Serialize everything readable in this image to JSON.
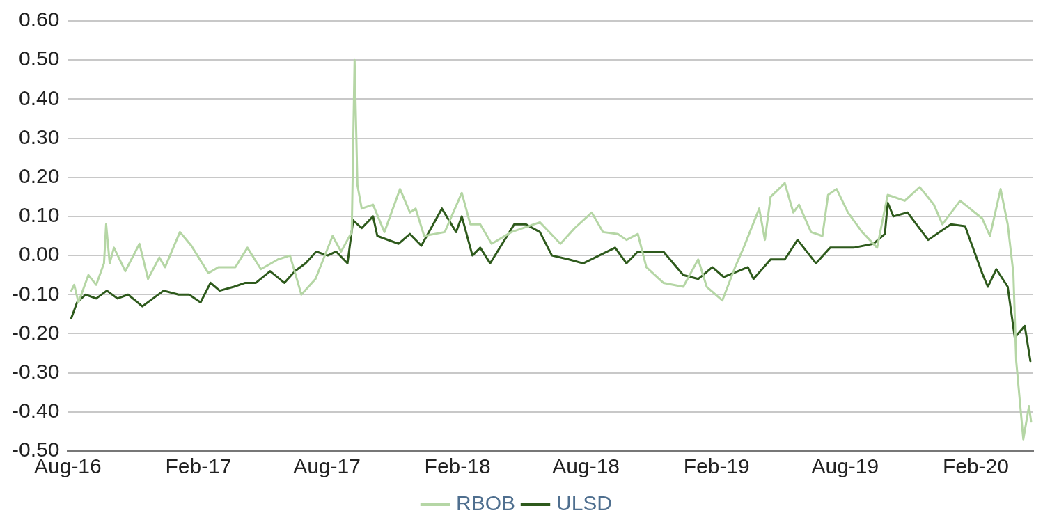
{
  "chart_data": {
    "type": "line",
    "legend": "bottom",
    "grid": "y",
    "marker": "none",
    "line_style": "solid",
    "xlim": [
      "2016-08-01",
      "2020-04-22"
    ],
    "xticks": [
      {
        "value": "2016-08-01",
        "label": "Aug-16"
      },
      {
        "value": "2017-02-01",
        "label": "Feb-17"
      },
      {
        "value": "2017-08-01",
        "label": "Aug-17"
      },
      {
        "value": "2018-02-01",
        "label": "Feb-18"
      },
      {
        "value": "2018-08-01",
        "label": "Aug-18"
      },
      {
        "value": "2019-02-01",
        "label": "Feb-19"
      },
      {
        "value": "2019-08-01",
        "label": "Aug-19"
      },
      {
        "value": "2020-02-01",
        "label": "Feb-20"
      }
    ],
    "ylim": [
      -0.5,
      0.6
    ],
    "yticks": [
      {
        "value": -0.5,
        "label": "-0.50"
      },
      {
        "value": -0.4,
        "label": "-0.40"
      },
      {
        "value": -0.3,
        "label": "-0.30"
      },
      {
        "value": -0.2,
        "label": "-0.20"
      },
      {
        "value": -0.1,
        "label": "-0.10"
      },
      {
        "value": 0,
        "label": "0.00"
      },
      {
        "value": 0.1,
        "label": "0.10"
      },
      {
        "value": 0.2,
        "label": "0.20"
      },
      {
        "value": 0.3,
        "label": "0.30"
      },
      {
        "value": 0.4,
        "label": "0.40"
      },
      {
        "value": 0.5,
        "label": "0.50"
      },
      {
        "value": 0.6,
        "label": "0.60"
      }
    ],
    "series": [
      {
        "name": "RBOB",
        "color": "#b5d6a5",
        "x": [
          "2016-08-06",
          "2016-08-10",
          "2016-08-16",
          "2016-08-30",
          "2016-09-10",
          "2016-09-21",
          "2016-09-24",
          "2016-09-29",
          "2016-10-05",
          "2016-10-21",
          "2016-11-10",
          "2016-11-22",
          "2016-12-08",
          "2016-12-16",
          "2017-01-06",
          "2017-01-22",
          "2017-02-15",
          "2017-03-01",
          "2017-03-25",
          "2017-04-11",
          "2017-04-30",
          "2017-05-24",
          "2017-06-10",
          "2017-06-26",
          "2017-07-16",
          "2017-08-09",
          "2017-08-21",
          "2017-09-05",
          "2017-09-09",
          "2017-09-13",
          "2017-09-19",
          "2017-10-05",
          "2017-10-21",
          "2017-11-12",
          "2017-11-26",
          "2017-12-04",
          "2017-12-16",
          "2018-01-14",
          "2018-02-07",
          "2018-02-19",
          "2018-03-05",
          "2018-03-21",
          "2018-04-18",
          "2018-05-28",
          "2018-06-26",
          "2018-07-16",
          "2018-08-09",
          "2018-08-25",
          "2018-09-15",
          "2018-09-27",
          "2018-10-13",
          "2018-10-25",
          "2018-11-18",
          "2018-12-16",
          "2019-01-06",
          "2019-01-18",
          "2019-02-09",
          "2019-02-27",
          "2019-03-11",
          "2019-04-02",
          "2019-04-10",
          "2019-04-18",
          "2019-05-08",
          "2019-05-20",
          "2019-05-28",
          "2019-06-14",
          "2019-06-30",
          "2019-07-08",
          "2019-07-20",
          "2019-08-05",
          "2019-08-25",
          "2019-09-15",
          "2019-09-30",
          "2019-10-24",
          "2019-11-14",
          "2019-12-04",
          "2019-12-16",
          "2020-01-10",
          "2020-02-10",
          "2020-02-21",
          "2020-03-07",
          "2020-03-17",
          "2020-03-25",
          "2020-03-29",
          "2020-04-08",
          "2020-04-16",
          "2020-04-19"
        ],
        "values": [
          -0.09,
          -0.075,
          -0.12,
          -0.05,
          -0.075,
          -0.02,
          0.08,
          -0.02,
          0.02,
          -0.04,
          0.03,
          -0.06,
          -0.005,
          -0.03,
          0.06,
          0.025,
          -0.045,
          -0.03,
          -0.03,
          0.02,
          -0.035,
          -0.01,
          0,
          -0.1,
          -0.06,
          0.05,
          0.01,
          0.06,
          0.5,
          0.18,
          0.12,
          0.13,
          0.06,
          0.17,
          0.11,
          0.12,
          0.05,
          0.06,
          0.16,
          0.08,
          0.08,
          0.03,
          0.06,
          0.085,
          0.03,
          0.07,
          0.11,
          0.06,
          0.055,
          0.04,
          0.055,
          -0.03,
          -0.07,
          -0.08,
          -0.01,
          -0.08,
          -0.115,
          -0.03,
          0.02,
          0.12,
          0.04,
          0.15,
          0.185,
          0.11,
          0.13,
          0.06,
          0.05,
          0.155,
          0.17,
          0.11,
          0.06,
          0.02,
          0.155,
          0.14,
          0.175,
          0.13,
          0.08,
          0.14,
          0.095,
          0.05,
          0.17,
          0.08,
          -0.045,
          -0.27,
          -0.47,
          -0.385,
          -0.425
        ]
      },
      {
        "name": "ULSD",
        "color": "#2e5a1c",
        "x": [
          "2016-08-06",
          "2016-08-14",
          "2016-08-26",
          "2016-09-10",
          "2016-09-25",
          "2016-10-10",
          "2016-10-25",
          "2016-11-14",
          "2016-11-29",
          "2016-12-14",
          "2017-01-04",
          "2017-01-19",
          "2017-02-04",
          "2017-02-18",
          "2017-03-03",
          "2017-03-23",
          "2017-04-08",
          "2017-04-23",
          "2017-05-13",
          "2017-06-02",
          "2017-06-17",
          "2017-07-02",
          "2017-07-17",
          "2017-08-02",
          "2017-08-14",
          "2017-08-30",
          "2017-09-07",
          "2017-09-19",
          "2017-10-05",
          "2017-10-11",
          "2017-11-10",
          "2017-11-26",
          "2017-12-12",
          "2018-01-10",
          "2018-01-30",
          "2018-02-07",
          "2018-02-22",
          "2018-03-05",
          "2018-03-19",
          "2018-04-22",
          "2018-05-08",
          "2018-05-28",
          "2018-06-14",
          "2018-07-08",
          "2018-07-28",
          "2018-09-11",
          "2018-09-27",
          "2018-10-13",
          "2018-11-18",
          "2018-12-16",
          "2019-01-06",
          "2019-01-26",
          "2019-02-11",
          "2019-03-17",
          "2019-03-25",
          "2019-04-18",
          "2019-05-08",
          "2019-05-26",
          "2019-06-21",
          "2019-07-11",
          "2019-08-13",
          "2019-09-10",
          "2019-09-26",
          "2019-09-30",
          "2019-10-08",
          "2019-10-28",
          "2019-11-26",
          "2019-12-28",
          "2020-01-17",
          "2020-02-10",
          "2020-02-18",
          "2020-03-01",
          "2020-03-17",
          "2020-03-27",
          "2020-04-10",
          "2020-04-18"
        ],
        "values": [
          -0.16,
          -0.12,
          -0.1,
          -0.11,
          -0.09,
          -0.11,
          -0.1,
          -0.13,
          -0.11,
          -0.09,
          -0.1,
          -0.1,
          -0.12,
          -0.07,
          -0.09,
          -0.08,
          -0.07,
          -0.07,
          -0.04,
          -0.07,
          -0.04,
          -0.02,
          0.01,
          0,
          0.01,
          -0.02,
          0.09,
          0.07,
          0.1,
          0.05,
          0.03,
          0.055,
          0.025,
          0.12,
          0.06,
          0.1,
          0,
          0.02,
          -0.02,
          0.08,
          0.08,
          0.06,
          0,
          -0.01,
          -0.02,
          0.02,
          -0.02,
          0.01,
          0.01,
          -0.05,
          -0.06,
          -0.03,
          -0.055,
          -0.03,
          -0.06,
          -0.01,
          -0.01,
          0.04,
          -0.02,
          0.02,
          0.02,
          0.03,
          0.055,
          0.135,
          0.1,
          0.11,
          0.04,
          0.08,
          0.075,
          -0.045,
          -0.08,
          -0.035,
          -0.08,
          -0.21,
          -0.18,
          -0.27
        ]
      }
    ]
  }
}
